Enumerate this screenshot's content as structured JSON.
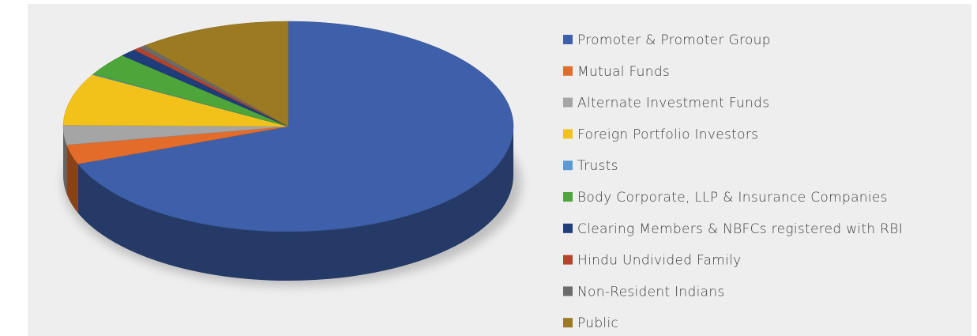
{
  "chart_data": {
    "type": "pie",
    "categories": [
      "Promoter & Promoter Group",
      "Mutual Funds",
      "Alternate Investment Funds",
      "Foreign Portfolio Investors",
      "Trusts",
      "Body Corporate, LLP & Insurance Companies",
      "Clearing Members & NBFCs registered with RBI",
      "Hindu Undivided Family",
      "Non-Resident Indians",
      "Public"
    ],
    "values": [
      69.2,
      3,
      3,
      8,
      0.1,
      3.5,
      1.2,
      0.5,
      0.5,
      11
    ],
    "colors": [
      "#3e60aa",
      "#e36c2a",
      "#a5a5a5",
      "#f2c21a",
      "#5b9bd5",
      "#4ea53a",
      "#1f3d7a",
      "#b5432a",
      "#6b6b6b",
      "#9c7a22"
    ],
    "legend": "right"
  }
}
